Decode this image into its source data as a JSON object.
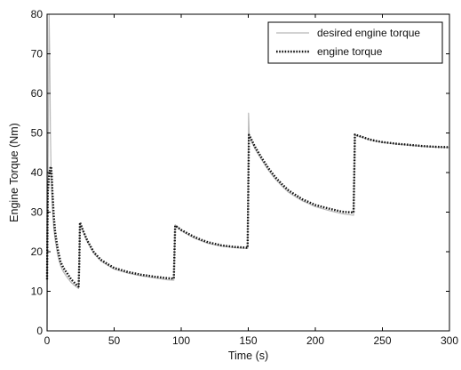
{
  "chart_data": {
    "type": "line",
    "title": "",
    "xlabel": "Time (s)",
    "ylabel": "Engine Torque (Nm)",
    "xlim": [
      0,
      300
    ],
    "ylim": [
      0,
      80
    ],
    "xticks": [
      0,
      50,
      100,
      150,
      200,
      250,
      300
    ],
    "yticks": [
      0,
      10,
      20,
      30,
      40,
      50,
      60,
      70,
      80
    ],
    "grid": false,
    "legend_position": "top-right",
    "series": [
      {
        "name": "desired engine torque",
        "color": "#b8b8b8",
        "style": "solid",
        "x": [
          0,
          0.5,
          1,
          1.5,
          2,
          2.5,
          3,
          4,
          5,
          6,
          8,
          10,
          12,
          15,
          18,
          20,
          22,
          23.5,
          24,
          24.5,
          27,
          30,
          35,
          40,
          45,
          50,
          60,
          70,
          80,
          90,
          94.5,
          95,
          95.5,
          98,
          100,
          105,
          110,
          115,
          120,
          130,
          140,
          149.5,
          150,
          150.2,
          150.8,
          152,
          155,
          160,
          165,
          170,
          175,
          180,
          190,
          200,
          210,
          220,
          228.5,
          229,
          229.5,
          232,
          235,
          240,
          245,
          250,
          260,
          270,
          280,
          290,
          300
        ],
        "y": [
          0,
          30,
          52,
          80,
          68,
          50,
          40,
          31,
          26,
          23,
          19,
          16.5,
          15,
          13.5,
          12.2,
          11.6,
          11.1,
          10.7,
          17,
          27,
          25,
          22.5,
          19.5,
          17.7,
          16.6,
          15.6,
          14.6,
          13.9,
          13.4,
          12.9,
          12.8,
          20,
          26.8,
          26,
          25.3,
          24.3,
          23.4,
          22.7,
          22.1,
          21.4,
          21,
          20.8,
          40,
          55,
          49,
          48.2,
          46,
          43.2,
          40.6,
          38.4,
          36.6,
          35,
          32.9,
          31.4,
          30.4,
          29.6,
          29.2,
          39,
          49.4,
          49.2,
          48.9,
          48.3,
          47.9,
          47.6,
          47.2,
          46.9,
          46.6,
          46.4,
          46.3
        ]
      },
      {
        "name": "engine torque",
        "color": "#111111",
        "style": "dotted",
        "x": [
          0,
          0.5,
          1,
          1.5,
          2,
          2.5,
          3,
          3.5,
          4,
          5,
          6,
          8,
          10,
          12,
          15,
          18,
          20,
          22,
          23.5,
          24,
          24.5,
          27,
          30,
          35,
          40,
          45,
          50,
          60,
          70,
          80,
          90,
          94.5,
          95,
          95.5,
          98,
          100,
          105,
          110,
          115,
          120,
          130,
          140,
          149.5,
          150,
          150.5,
          152,
          155,
          160,
          165,
          170,
          175,
          180,
          190,
          200,
          210,
          220,
          228.5,
          229,
          229.5,
          232,
          235,
          240,
          245,
          250,
          260,
          270,
          280,
          290,
          300
        ],
        "y": [
          13,
          35,
          37,
          39,
          40.5,
          41.2,
          41.5,
          39,
          35,
          29,
          25,
          20.5,
          17.5,
          16,
          14.5,
          13,
          12.3,
          11.6,
          11.2,
          17,
          27.4,
          25.2,
          22.8,
          19.8,
          18,
          16.9,
          15.9,
          14.9,
          14.2,
          13.7,
          13.3,
          13.2,
          20,
          26.6,
          26,
          25.5,
          24.6,
          23.7,
          23,
          22.4,
          21.6,
          21.2,
          21,
          35,
          49.5,
          48.6,
          46.5,
          43.7,
          41.1,
          38.9,
          37.1,
          35.5,
          33.3,
          31.8,
          30.9,
          30.1,
          29.9,
          39,
          49.6,
          49.3,
          49,
          48.4,
          48,
          47.7,
          47.3,
          47,
          46.7,
          46.5,
          46.4
        ]
      }
    ]
  }
}
